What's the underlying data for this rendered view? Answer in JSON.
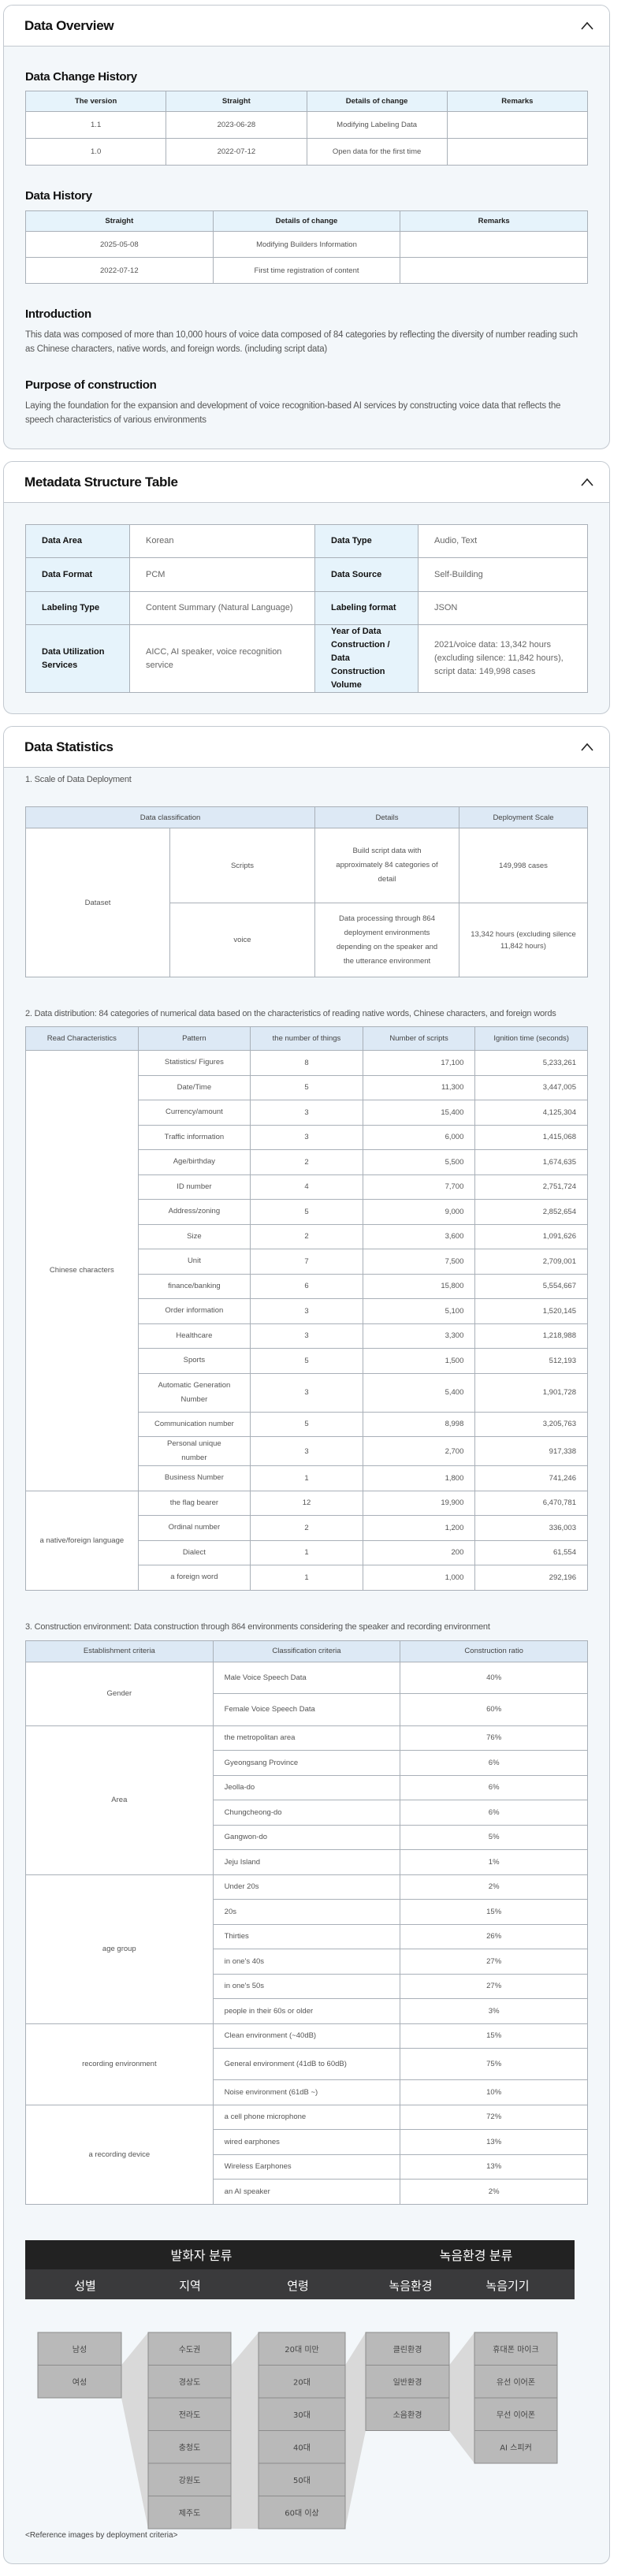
{
  "colors": {
    "header_bg": "#e6f3fb",
    "stat_header_bg": "#dde9f5",
    "panel_bg": "#f3f7fa",
    "banner": "#222222"
  },
  "overview": {
    "title": "Data Overview",
    "change_history": {
      "title": "Data Change History",
      "headers": [
        "The version",
        "Straight",
        "Details of change",
        "Remarks"
      ],
      "rows": [
        [
          "1.1",
          "2023-06-28",
          "Modifying Labeling Data",
          ""
        ],
        [
          "1.0",
          "2022-07-12",
          "Open data for the first time",
          ""
        ]
      ]
    },
    "data_history": {
      "title": "Data History",
      "headers": [
        "Straight",
        "Details of change",
        "Remarks"
      ],
      "rows": [
        [
          "2025-05-08",
          "Modifying Builders Information",
          ""
        ],
        [
          "2022-07-12",
          "First time registration of content",
          ""
        ]
      ]
    },
    "intro": {
      "title": "Introduction",
      "text": "This data was composed of more than 10,000 hours of voice data composed of 84 categories by reflecting the diversity of number reading such as Chinese characters, native words, and foreign words. (including script data)"
    },
    "purpose": {
      "title": "Purpose of construction",
      "text": "Laying the foundation for the expansion and development of voice recognition-based AI services by constructing voice data that reflects the speech characteristics of various environments"
    }
  },
  "metadata": {
    "title": "Metadata Structure Table",
    "rows": [
      [
        "Data Area",
        "Korean",
        "Data Type",
        "Audio, Text"
      ],
      [
        "Data Format",
        "PCM",
        "Data Source",
        "Self-Building"
      ],
      [
        "Labeling Type",
        "Content Summary (Natural Language)",
        "Labeling format",
        "JSON"
      ],
      [
        "Data Utilization Services",
        "AICC, AI speaker, voice recognition service",
        "Year of Data Construction / Data Construction Volume",
        "2021/voice data: 13,342 hours (excluding silence: 11,842 hours), script data: 149,998 cases"
      ]
    ]
  },
  "statistics": {
    "title": "Data Statistics",
    "scale": {
      "title": "1. Scale of Data Deployment",
      "headers": [
        "Data classification",
        "Details",
        "Deployment Scale"
      ],
      "group": "Dataset",
      "rows": [
        [
          "Scripts",
          "Build script data with approximately 84 categories of detail",
          "149,998 cases"
        ],
        [
          "voice",
          "Data processing through 864 deployment environments depending on the speaker and the utterance environment",
          "13,342 hours (excluding silence 11,842 hours)"
        ]
      ]
    },
    "distribution": {
      "title": "2. Data distribution: 84 categories of numerical data based on the characteristics of reading native words, Chinese characters, and foreign words",
      "headers": [
        "Read Characteristics",
        "Pattern",
        "the number of things",
        "Number of scripts",
        "Ignition time (seconds)"
      ],
      "groups": [
        {
          "name": "Chinese characters",
          "rows": [
            [
              "Statistics/ Figures",
              "8",
              "17,100",
              "5,233,261"
            ],
            [
              "Date/Time",
              "5",
              "11,300",
              "3,447,005"
            ],
            [
              "Currency/amount",
              "3",
              "15,400",
              "4,125,304"
            ],
            [
              "Traffic information",
              "3",
              "6,000",
              "1,415,068"
            ],
            [
              "Age/birthday",
              "2",
              "5,500",
              "1,674,635"
            ],
            [
              "ID number",
              "4",
              "7,700",
              "2,751,724"
            ],
            [
              "Address/zoning",
              "5",
              "9,000",
              "2,852,654"
            ],
            [
              "Size",
              "2",
              "3,600",
              "1,091,626"
            ],
            [
              "Unit",
              "7",
              "7,500",
              "2,709,001"
            ],
            [
              "finance/banking",
              "6",
              "15,800",
              "5,554,667"
            ],
            [
              "Order information",
              "3",
              "5,100",
              "1,520,145"
            ],
            [
              "Healthcare",
              "3",
              "3,300",
              "1,218,988"
            ],
            [
              "Sports",
              "5",
              "1,500",
              "512,193"
            ],
            [
              "Automatic Generation Number",
              "3",
              "5,400",
              "1,901,728"
            ],
            [
              "Communication number",
              "5",
              "8,998",
              "3,205,763"
            ],
            [
              "Personal unique number",
              "3",
              "2,700",
              "917,338"
            ],
            [
              "Business Number",
              "1",
              "1,800",
              "741,246"
            ]
          ]
        },
        {
          "name": "a native/foreign language",
          "rows": [
            [
              "the flag bearer",
              "12",
              "19,900",
              "6,470,781"
            ],
            [
              "Ordinal number",
              "2",
              "1,200",
              "336,003"
            ],
            [
              "Dialect",
              "1",
              "200",
              "61,554"
            ],
            [
              "a foreign word",
              "1",
              "1,000",
              "292,196"
            ]
          ]
        }
      ]
    },
    "environment": {
      "title": "3. Construction environment: Data construction through 864 environments considering the speaker and recording environment",
      "headers": [
        "Establishment criteria",
        "Classification criteria",
        "Construction ratio"
      ],
      "groups": [
        {
          "name": "Gender",
          "rows": [
            [
              "Male Voice Speech Data",
              "40%"
            ],
            [
              "Female Voice Speech Data",
              "60%"
            ]
          ]
        },
        {
          "name": "Area",
          "rows": [
            [
              "the metropolitan area",
              "76%"
            ],
            [
              "Gyeongsang Province",
              "6%"
            ],
            [
              "Jeolla-do",
              "6%"
            ],
            [
              "Chungcheong-do",
              "6%"
            ],
            [
              "Gangwon-do",
              "5%"
            ],
            [
              "Jeju Island",
              "1%"
            ]
          ]
        },
        {
          "name": "age group",
          "rows": [
            [
              "Under 20s",
              "2%"
            ],
            [
              "20s",
              "15%"
            ],
            [
              "Thirties",
              "26%"
            ],
            [
              "in one's 40s",
              "27%"
            ],
            [
              "in one's 50s",
              "27%"
            ],
            [
              "people in their 60s or older",
              "3%"
            ]
          ]
        },
        {
          "name": "recording environment",
          "rows": [
            [
              "Clean environment (~40dB)",
              "15%"
            ],
            [
              "General environment (41dB to 60dB)",
              "75%"
            ],
            [
              "Noise environment (61dB ~)",
              "10%"
            ]
          ]
        },
        {
          "name": "a recording device",
          "rows": [
            [
              "a cell phone microphone",
              "72%"
            ],
            [
              "wired earphones",
              "13%"
            ],
            [
              "Wireless Earphones",
              "13%"
            ],
            [
              "an AI speaker",
              "2%"
            ]
          ]
        }
      ]
    },
    "diagram": {
      "speaker_title": "발화자 분류",
      "env_title": "녹음환경 분류",
      "columns": [
        {
          "label": "성별",
          "items": [
            "남성",
            "여성"
          ]
        },
        {
          "label": "지역",
          "items": [
            "수도권",
            "경상도",
            "전라도",
            "충청도",
            "강원도",
            "제주도"
          ]
        },
        {
          "label": "연령",
          "items": [
            "20대 미만",
            "20대",
            "30대",
            "40대",
            "50대",
            "60대 이상"
          ]
        },
        {
          "label": "녹음환경",
          "items": [
            "클린환경",
            "일반환경",
            "소음환경"
          ]
        },
        {
          "label": "녹음기기",
          "items": [
            "휴대폰 마이크",
            "유선 이어폰",
            "무선 이어폰",
            "AI 스피커"
          ]
        }
      ],
      "caption": "<Reference images by deployment criteria>"
    }
  }
}
